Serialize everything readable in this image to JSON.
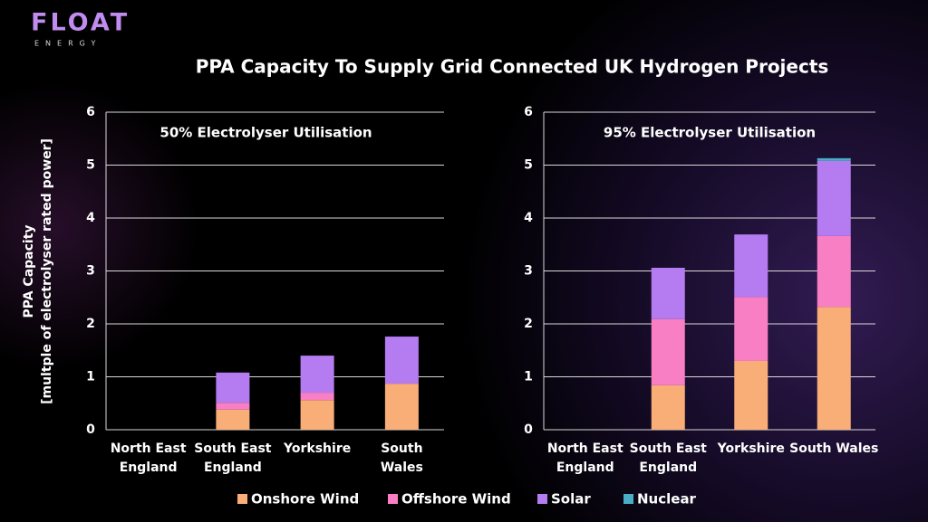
{
  "logo": {
    "name": "FLOAT",
    "tagline": "ENERGY"
  },
  "title": "PPA Capacity To Supply Grid Connected UK Hydrogen Projects",
  "chart_data": [
    {
      "type": "bar",
      "stacked": true,
      "title": "50% Electrolyser Utilisation",
      "ylabel": [
        "PPA Capacity",
        "[multple of electrolyser rated power]"
      ],
      "categories": [
        "North East\nEngland",
        "South East\nEngland",
        "Yorkshire",
        "South\nWales"
      ],
      "series": [
        {
          "name": "Onshore Wind",
          "color": "#f9ae78",
          "values": [
            0,
            0.38,
            0.56,
            0.87
          ]
        },
        {
          "name": "Offshore Wind",
          "color": "#f97fc4",
          "values": [
            0,
            0.13,
            0.14,
            0
          ]
        },
        {
          "name": "Solar",
          "color": "#b57bf0",
          "values": [
            0,
            0.57,
            0.7,
            0.89
          ]
        },
        {
          "name": "Nuclear",
          "color": "#4bacc6",
          "values": [
            0,
            0,
            0,
            0
          ]
        }
      ],
      "ylim": [
        0,
        6
      ],
      "yticks": [
        0,
        1,
        2,
        3,
        4,
        5,
        6
      ],
      "grid": true
    },
    {
      "type": "bar",
      "stacked": true,
      "title": "95% Electrolyser Utilisation",
      "categories": [
        "North East\nEngland",
        "South East\nEngland",
        "Yorkshire",
        "South Wales"
      ],
      "series": [
        {
          "name": "Onshore Wind",
          "color": "#f9ae78",
          "values": [
            0,
            0.84,
            1.3,
            2.32
          ]
        },
        {
          "name": "Offshore Wind",
          "color": "#f97fc4",
          "values": [
            0,
            1.25,
            1.21,
            1.34
          ]
        },
        {
          "name": "Solar",
          "color": "#b57bf0",
          "values": [
            0,
            0.97,
            1.18,
            1.42
          ]
        },
        {
          "name": "Nuclear",
          "color": "#4bacc6",
          "values": [
            0,
            0,
            0,
            0.05
          ]
        }
      ],
      "ylim": [
        0,
        6
      ],
      "yticks": [
        0,
        1,
        2,
        3,
        4,
        5,
        6
      ],
      "grid": true
    }
  ]
}
